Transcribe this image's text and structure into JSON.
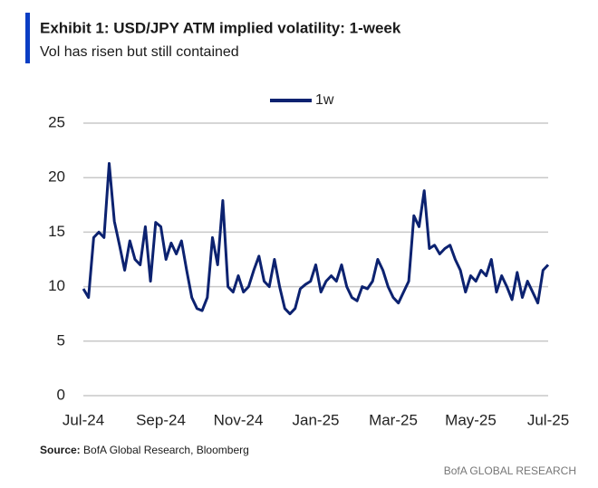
{
  "chart_data": {
    "type": "line",
    "title": "Exhibit 1: USD/JPY ATM implied volatility: 1-week",
    "subtitle": "Vol has risen but still contained",
    "source": {
      "label": "Source:",
      "text": "BofA Global Research, Bloomberg"
    },
    "footer": "BofA GLOBAL RESEARCH",
    "categories": [
      "Jul-24",
      null,
      null,
      null,
      null,
      null,
      null,
      null,
      null,
      null,
      null,
      null,
      null,
      null,
      null,
      "Sep-24",
      null,
      null,
      null,
      null,
      null,
      null,
      null,
      null,
      null,
      null,
      null,
      null,
      null,
      null,
      "Nov-24",
      null,
      null,
      null,
      null,
      null,
      null,
      null,
      null,
      null,
      null,
      null,
      null,
      null,
      null,
      "Jan-25",
      null,
      null,
      null,
      null,
      null,
      null,
      null,
      null,
      null,
      null,
      null,
      null,
      null,
      null,
      "Mar-25",
      null,
      null,
      null,
      null,
      null,
      null,
      null,
      null,
      null,
      null,
      null,
      null,
      null,
      null,
      "May-25",
      null,
      null,
      null,
      null,
      null,
      null,
      null,
      null,
      null,
      null,
      null,
      null,
      null,
      null,
      "Jul-25"
    ],
    "series": [
      {
        "name": "1w",
        "color": "#0c2270",
        "values": [
          9.8,
          9,
          14.5,
          15,
          14.5,
          21.3,
          16,
          13.8,
          11.5,
          14.2,
          12.5,
          12,
          15.5,
          10.5,
          15.9,
          15.5,
          12.5,
          14,
          13,
          14.2,
          11.5,
          9,
          8,
          7.8,
          9,
          14.5,
          12,
          17.9,
          10,
          9.5,
          11,
          9.5,
          10,
          11.5,
          12.8,
          10.5,
          10,
          12.5,
          10,
          8,
          7.5,
          8,
          9.8,
          10.2,
          10.5,
          12,
          9.5,
          10.5,
          11,
          10.5,
          12,
          10,
          9,
          8.7,
          10,
          9.8,
          10.5,
          12.5,
          11.5,
          10,
          9,
          8.5,
          9.5,
          10.5,
          16.5,
          15.5,
          18.8,
          13.5,
          13.8,
          13,
          13.5,
          13.8,
          12.5,
          11.5,
          9.5,
          11,
          10.5,
          11.5,
          11,
          12.5,
          9.5,
          11,
          10,
          8.8,
          11.3,
          9,
          10.5,
          9.5,
          8.5,
          11.5,
          12
        ]
      }
    ],
    "ylim": [
      0,
      25
    ],
    "yticks": [
      0,
      5,
      10,
      15,
      20,
      25
    ],
    "grid": true,
    "legend": "top"
  }
}
